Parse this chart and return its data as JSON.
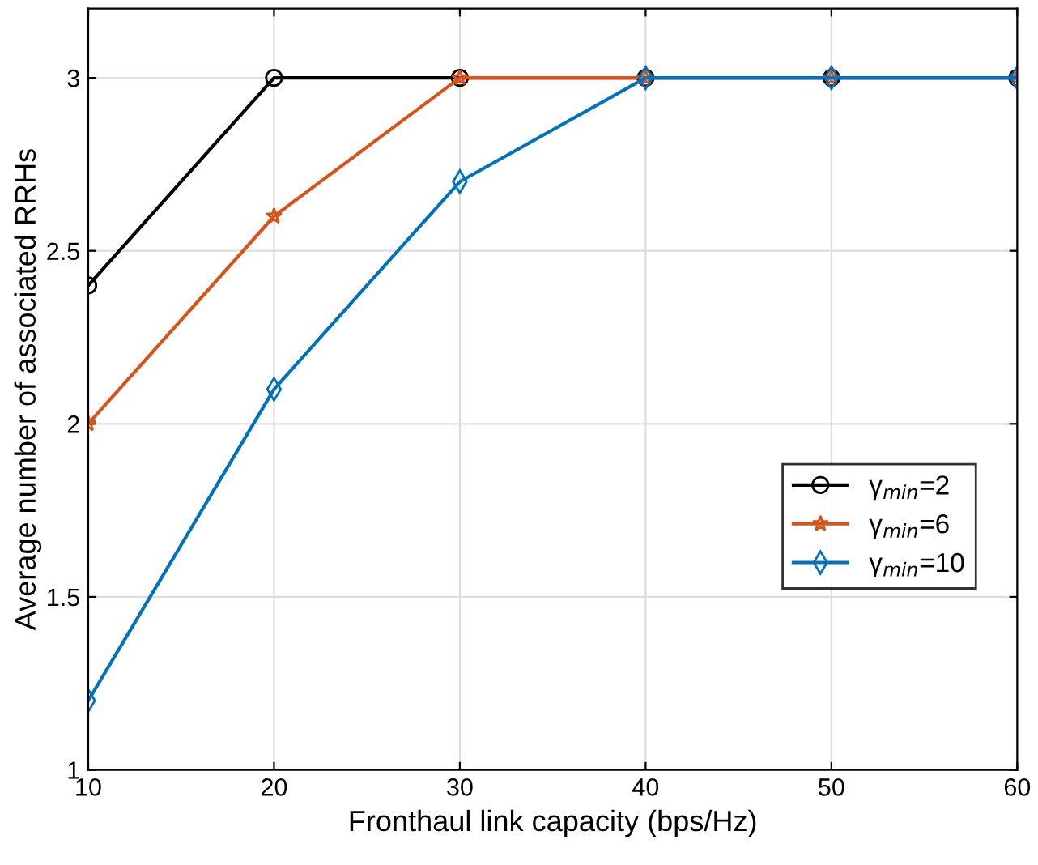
{
  "chart_data": {
    "type": "line",
    "xlabel": "Fronthaul link capacity (bps/Hz)",
    "ylabel": "Average number of associated RRHs",
    "x": [
      10,
      20,
      30,
      40,
      50,
      60
    ],
    "series": [
      {
        "name": "γ$_{min}$=2",
        "color": "#000000",
        "marker": "circle",
        "values": [
          2.4,
          3,
          3,
          3,
          3,
          3
        ]
      },
      {
        "name": "γ$_{min}$=6",
        "color": "#d95319",
        "marker": "star",
        "values": [
          2,
          2.6,
          3,
          3,
          3,
          3
        ]
      },
      {
        "name": "γ$_{min}$=10",
        "color": "#0072bd",
        "marker": "diamond",
        "values": [
          1.2,
          2.1,
          2.7,
          3,
          3,
          3
        ]
      }
    ],
    "xlim": [
      10,
      60
    ],
    "xticks": [
      10,
      20,
      30,
      40,
      50,
      60
    ],
    "ylim": [
      1,
      3.2
    ],
    "yticks": [
      1,
      1.5,
      2,
      2.5,
      3
    ],
    "grid": true,
    "legend": "right",
    "line_style": "solid"
  }
}
